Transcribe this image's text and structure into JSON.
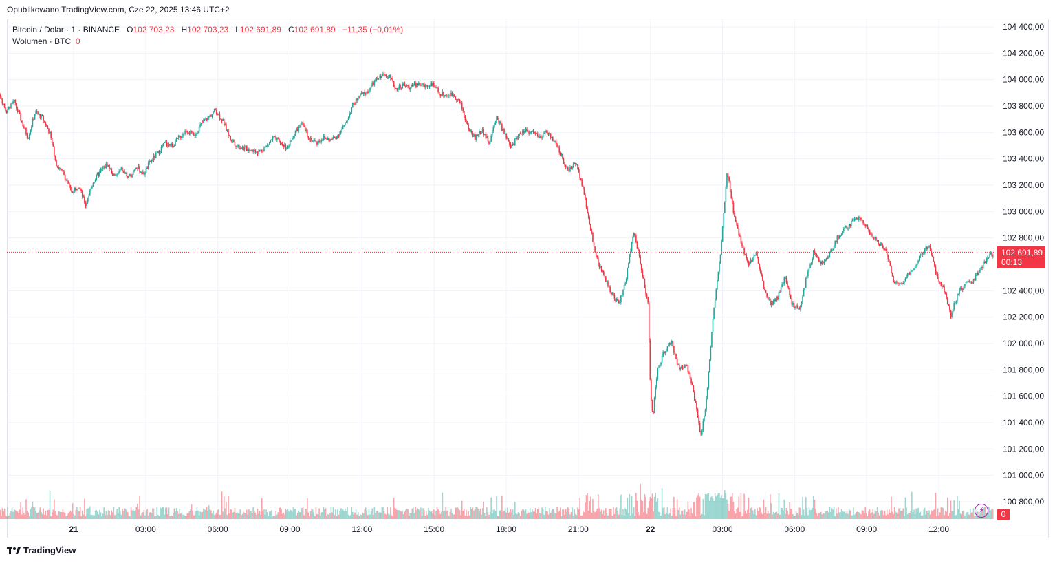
{
  "published": "Opublikowano TradingView.com, Cze 22, 2025 13:46 UTC+2",
  "legend": {
    "symbol": "Bitcoin / Dolar · 1 · BINANCE",
    "o_label": "O",
    "o_value": "102 703,23",
    "h_label": "H",
    "h_value": "102 703,23",
    "l_label": "L",
    "l_value": "102 691,89",
    "c_label": "C",
    "c_value": "102 691,89",
    "change": "−11,35 (−0,01%)",
    "volume_label": "Wolumen · BTC",
    "volume_value": "0"
  },
  "last_price": {
    "value": "102 691,89",
    "countdown": "00:13"
  },
  "colors": {
    "up": "#26a69a",
    "down": "#f23645",
    "grid": "#f0f3fa",
    "axis_text": "#131722"
  },
  "footer": {
    "brand": "TradingView",
    "logo_icon": "tradingview-logo-icon"
  },
  "chart_data": {
    "type": "candlestick",
    "symbol": "BTCUSD",
    "interval": "1",
    "ylim": [
      100700,
      104460
    ],
    "y_ticks": [
      {
        "value": 104400,
        "label": "104 400,00"
      },
      {
        "value": 104200,
        "label": "104 200,00"
      },
      {
        "value": 104000,
        "label": "104 000,00"
      },
      {
        "value": 103800,
        "label": "103 800,00"
      },
      {
        "value": 103600,
        "label": "103 600,00"
      },
      {
        "value": 103400,
        "label": "103 400,00"
      },
      {
        "value": 103200,
        "label": "103 200,00"
      },
      {
        "value": 103000,
        "label": "103 000,00"
      },
      {
        "value": 102800,
        "label": "102 800,00"
      },
      {
        "value": 102400,
        "label": "102 400,00"
      },
      {
        "value": 102200,
        "label": "102 200,00"
      },
      {
        "value": 102000,
        "label": "102 000,00"
      },
      {
        "value": 101800,
        "label": "101 800,00"
      },
      {
        "value": 101600,
        "label": "101 600,00"
      },
      {
        "value": 101400,
        "label": "101 400,00"
      },
      {
        "value": 101200,
        "label": "101 200,00"
      },
      {
        "value": 101000,
        "label": "101 000,00"
      },
      {
        "value": 100800,
        "label": "100 800,00"
      }
    ],
    "xlim_hours": [
      -4.1,
      36.6
    ],
    "x_ticks": [
      {
        "hour": 0,
        "label": "21",
        "bold": true
      },
      {
        "hour": 3,
        "label": "03:00"
      },
      {
        "hour": 6,
        "label": "06:00"
      },
      {
        "hour": 9,
        "label": "09:00"
      },
      {
        "hour": 12,
        "label": "12:00"
      },
      {
        "hour": 15,
        "label": "15:00"
      },
      {
        "hour": 18,
        "label": "18:00"
      },
      {
        "hour": 21,
        "label": "21:00"
      },
      {
        "hour": 24,
        "label": "22",
        "bold": true
      },
      {
        "hour": 27,
        "label": "03:00"
      },
      {
        "hour": 30,
        "label": "06:00"
      },
      {
        "hour": 33,
        "label": "09:00"
      },
      {
        "hour": 36,
        "label": "12:00"
      }
    ],
    "price_path": [
      [
        -4.0,
        103220
      ],
      [
        -3.7,
        103350
      ],
      [
        -3.4,
        103520
      ],
      [
        -3.1,
        103900
      ],
      [
        -2.8,
        103760
      ],
      [
        -2.5,
        103840
      ],
      [
        -2.2,
        103700
      ],
      [
        -1.9,
        103560
      ],
      [
        -1.6,
        103750
      ],
      [
        -1.3,
        103710
      ],
      [
        -1.0,
        103600
      ],
      [
        -0.7,
        103350
      ],
      [
        -0.4,
        103280
      ],
      [
        -0.1,
        103150
      ],
      [
        0.2,
        103200
      ],
      [
        0.5,
        103050
      ],
      [
        0.8,
        103220
      ],
      [
        1.1,
        103300
      ],
      [
        1.4,
        103360
      ],
      [
        1.7,
        103260
      ],
      [
        2.0,
        103320
      ],
      [
        2.3,
        103250
      ],
      [
        2.6,
        103350
      ],
      [
        2.9,
        103280
      ],
      [
        3.2,
        103380
      ],
      [
        3.5,
        103440
      ],
      [
        3.8,
        103520
      ],
      [
        4.1,
        103500
      ],
      [
        4.4,
        103560
      ],
      [
        4.7,
        103620
      ],
      [
        5.0,
        103570
      ],
      [
        5.3,
        103660
      ],
      [
        5.6,
        103710
      ],
      [
        5.9,
        103770
      ],
      [
        6.2,
        103690
      ],
      [
        6.5,
        103560
      ],
      [
        6.8,
        103500
      ],
      [
        7.1,
        103480
      ],
      [
        7.4,
        103470
      ],
      [
        7.7,
        103450
      ],
      [
        8.0,
        103490
      ],
      [
        8.3,
        103560
      ],
      [
        8.6,
        103520
      ],
      [
        8.9,
        103480
      ],
      [
        9.2,
        103600
      ],
      [
        9.5,
        103660
      ],
      [
        9.8,
        103560
      ],
      [
        10.1,
        103520
      ],
      [
        10.4,
        103560
      ],
      [
        10.7,
        103540
      ],
      [
        11.0,
        103580
      ],
      [
        11.3,
        103660
      ],
      [
        11.6,
        103800
      ],
      [
        11.9,
        103880
      ],
      [
        12.2,
        103900
      ],
      [
        12.5,
        103980
      ],
      [
        12.8,
        104030
      ],
      [
        13.1,
        104040
      ],
      [
        13.4,
        103930
      ],
      [
        13.7,
        103960
      ],
      [
        14.0,
        103940
      ],
      [
        14.3,
        103970
      ],
      [
        14.6,
        103950
      ],
      [
        14.9,
        103970
      ],
      [
        15.2,
        103900
      ],
      [
        15.5,
        103880
      ],
      [
        15.8,
        103890
      ],
      [
        16.1,
        103820
      ],
      [
        16.4,
        103640
      ],
      [
        16.7,
        103560
      ],
      [
        17.0,
        103620
      ],
      [
        17.3,
        103520
      ],
      [
        17.6,
        103720
      ],
      [
        17.9,
        103600
      ],
      [
        18.2,
        103480
      ],
      [
        18.5,
        103580
      ],
      [
        18.8,
        103620
      ],
      [
        19.1,
        103600
      ],
      [
        19.4,
        103560
      ],
      [
        19.7,
        103600
      ],
      [
        20.0,
        103540
      ],
      [
        20.3,
        103420
      ],
      [
        20.6,
        103300
      ],
      [
        20.9,
        103380
      ],
      [
        21.2,
        103180
      ],
      [
        21.5,
        102880
      ],
      [
        21.8,
        102620
      ],
      [
        22.1,
        102500
      ],
      [
        22.4,
        102380
      ],
      [
        22.7,
        102300
      ],
      [
        23.0,
        102500
      ],
      [
        23.3,
        102860
      ],
      [
        23.6,
        102600
      ],
      [
        23.9,
        102300
      ],
      [
        24.0,
        101650
      ],
      [
        24.1,
        101450
      ],
      [
        24.3,
        101800
      ],
      [
        24.6,
        101950
      ],
      [
        24.9,
        102000
      ],
      [
        25.2,
        101800
      ],
      [
        25.5,
        101850
      ],
      [
        25.8,
        101620
      ],
      [
        26.1,
        101300
      ],
      [
        26.3,
        101500
      ],
      [
        26.6,
        102200
      ],
      [
        26.9,
        102650
      ],
      [
        27.2,
        103300
      ],
      [
        27.5,
        102950
      ],
      [
        27.8,
        102750
      ],
      [
        28.1,
        102600
      ],
      [
        28.4,
        102680
      ],
      [
        28.7,
        102450
      ],
      [
        29.0,
        102300
      ],
      [
        29.3,
        102350
      ],
      [
        29.6,
        102500
      ],
      [
        29.9,
        102300
      ],
      [
        30.2,
        102250
      ],
      [
        30.5,
        102500
      ],
      [
        30.8,
        102700
      ],
      [
        31.1,
        102600
      ],
      [
        31.4,
        102650
      ],
      [
        31.7,
        102780
      ],
      [
        32.0,
        102850
      ],
      [
        32.3,
        102900
      ],
      [
        32.6,
        102960
      ],
      [
        32.9,
        102920
      ],
      [
        33.2,
        102820
      ],
      [
        33.5,
        102760
      ],
      [
        33.8,
        102720
      ],
      [
        34.1,
        102480
      ],
      [
        34.4,
        102440
      ],
      [
        34.7,
        102520
      ],
      [
        35.0,
        102590
      ],
      [
        35.3,
        102680
      ],
      [
        35.6,
        102750
      ],
      [
        35.9,
        102520
      ],
      [
        36.2,
        102420
      ],
      [
        36.5,
        102220
      ],
      [
        36.8,
        102380
      ],
      [
        37.1,
        102450
      ],
      [
        37.4,
        102470
      ],
      [
        37.7,
        102550
      ],
      [
        38.0,
        102640
      ],
      [
        38.3,
        102690
      ]
    ],
    "last_price_value": 102691.89
  }
}
